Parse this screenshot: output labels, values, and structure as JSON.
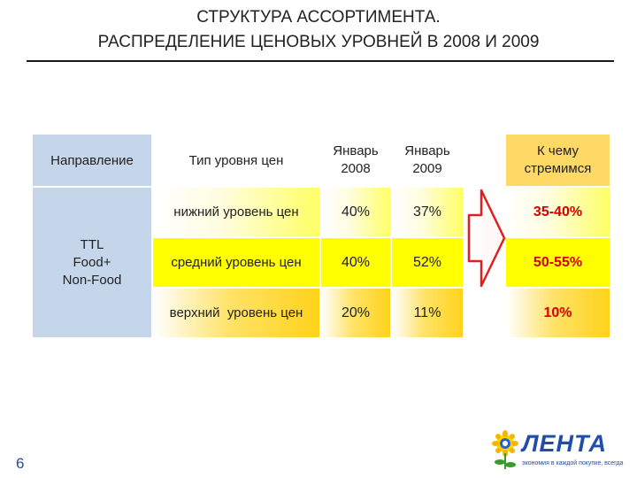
{
  "title": {
    "line1": "СТРУКТУРА АССОРТИМЕНТА.",
    "line2": "РАСПРЕДЕЛЕНИЕ ЦЕНОВЫХ УРОВНЕЙ В 2008 И 2009"
  },
  "table": {
    "headers": {
      "direction": "Направление",
      "price_type": "Тип уровня цен",
      "jan2008_line1": "Январь",
      "jan2008_line2": "2008",
      "jan2009_line1": "Январь",
      "jan2009_line2": "2009",
      "target_line1": "К чему",
      "target_line2": "стремимся"
    },
    "direction_value": {
      "line1": "TTL",
      "line2": "Food+",
      "line3": "Non-Food"
    },
    "rows": [
      {
        "level": "нижний уровень цен",
        "jan2008": "40%",
        "jan2009": "37%",
        "target": "35-40%"
      },
      {
        "level": "средний уровень цен",
        "jan2008": "40%",
        "jan2009": "52%",
        "target": "50-55%"
      },
      {
        "level": "верхний  уровень цен",
        "jan2008": "20%",
        "jan2009": "11%",
        "target": "10%"
      }
    ]
  },
  "page_number": "6",
  "logo": {
    "word": "ЛЕНТА",
    "tagline": "экономия в каждой покупке, всегда"
  },
  "colors": {
    "header_blue": "#c5d5ea",
    "header_yellow": "#ffd966",
    "target_red": "#d40000",
    "arrow_red": "#e02020",
    "brand_blue": "#1f4ea8"
  }
}
